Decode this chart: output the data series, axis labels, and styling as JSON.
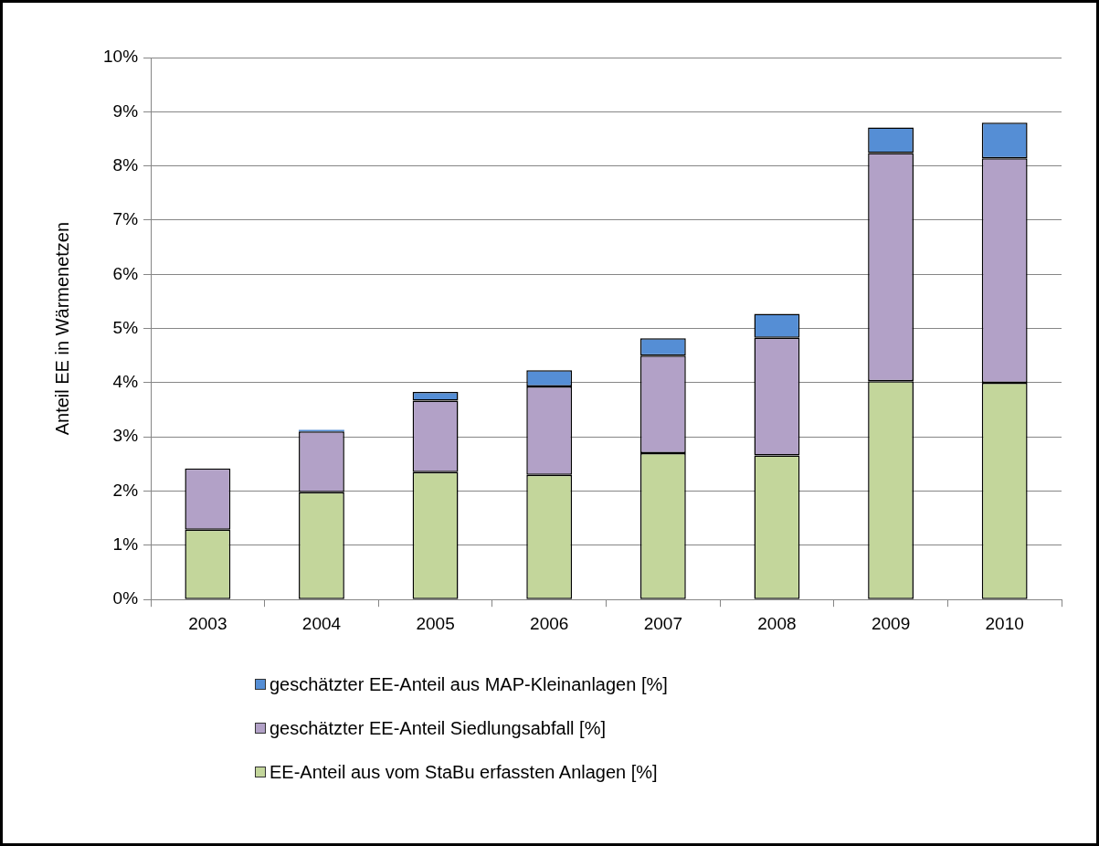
{
  "chart_data": {
    "type": "bar",
    "stacked": true,
    "ylabel": "Anteil EE in Wärmenetzen",
    "categories": [
      "2003",
      "2004",
      "2005",
      "2006",
      "2007",
      "2008",
      "2009",
      "2010"
    ],
    "series": [
      {
        "name": "EE-Anteil aus vom StaBu erfassten Anlagen [%]",
        "color": "#c3d69b",
        "values": [
          1.29,
          1.98,
          2.35,
          2.3,
          2.7,
          2.66,
          4.03,
          4.0
        ]
      },
      {
        "name": "geschätzter EE-Anteil Siedlungsabfall [%]",
        "color": "#b2a1c7",
        "values": [
          1.13,
          1.12,
          1.32,
          1.63,
          1.8,
          2.17,
          4.21,
          4.14
        ]
      },
      {
        "name": "geschätzter EE-Anteil aus MAP-Kleinanlagen [%]",
        "color": "#558ed5",
        "values": [
          0,
          0.03,
          0.16,
          0.3,
          0.32,
          0.44,
          0.47,
          0.66
        ]
      }
    ],
    "ylim": [
      0,
      10
    ],
    "yticks": [
      {
        "value": 0,
        "label": "0%"
      },
      {
        "value": 1,
        "label": "1%"
      },
      {
        "value": 2,
        "label": "2%"
      },
      {
        "value": 3,
        "label": "3%"
      },
      {
        "value": 4,
        "label": "4%"
      },
      {
        "value": 5,
        "label": "5%"
      },
      {
        "value": 6,
        "label": "6%"
      },
      {
        "value": 7,
        "label": "7%"
      },
      {
        "value": 8,
        "label": "8%"
      },
      {
        "value": 9,
        "label": "9%"
      },
      {
        "value": 10,
        "label": "10%"
      }
    ],
    "grid": "y",
    "legend": "bottom"
  }
}
